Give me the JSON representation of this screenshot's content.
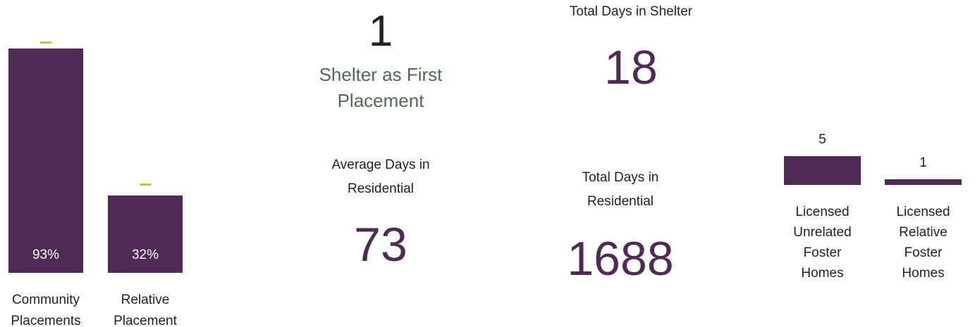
{
  "chart_data": [
    {
      "type": "bar",
      "categories": [
        "Community Placements",
        "Relative Placement"
      ],
      "values": [
        93,
        32
      ],
      "value_labels": [
        "93%",
        "32%"
      ],
      "color": "#4e2a55",
      "markers": [
        96,
        37
      ],
      "marker_color": "#b5cc34"
    },
    {
      "type": "bar",
      "categories": [
        "Licensed Unrelated Foster Homes",
        "Licensed Relative Foster Homes"
      ],
      "values": [
        5,
        1
      ],
      "color": "#4e2a55"
    }
  ],
  "kpis": [
    {
      "value": 1,
      "label": "Shelter as First Placement"
    },
    {
      "label": "Total Days in Shelter",
      "value": 18
    },
    {
      "label": "Average Days in Residential",
      "value": 73
    },
    {
      "label": "Total Days in Residential",
      "value": 1688
    }
  ]
}
